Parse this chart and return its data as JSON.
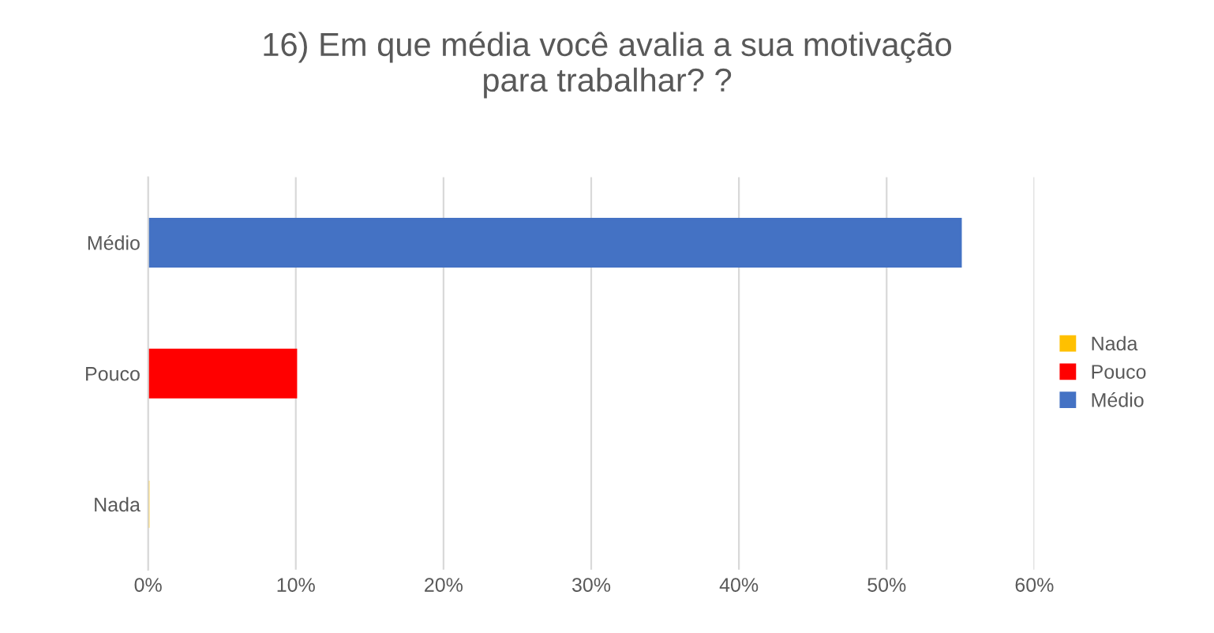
{
  "chart_data": {
    "type": "bar",
    "orientation": "horizontal",
    "title": "16) Em que média você avalia a sua motivação\npara trabalhar? ?",
    "categories": [
      "Médio",
      "Pouco",
      "Nada"
    ],
    "series": [
      {
        "name": "Nada",
        "color": "#ffc000",
        "values": [
          null,
          null,
          0
        ]
      },
      {
        "name": "Pouco",
        "color": "#ff0000",
        "values": [
          null,
          10,
          null
        ]
      },
      {
        "name": "Médio",
        "color": "#4472c4",
        "values": [
          55,
          null,
          null
        ]
      }
    ],
    "xlim": [
      0,
      60
    ],
    "xticks": [
      {
        "value": 0,
        "label": "0%"
      },
      {
        "value": 10,
        "label": "10%"
      },
      {
        "value": 20,
        "label": "20%"
      },
      {
        "value": 30,
        "label": "30%"
      },
      {
        "value": 40,
        "label": "40%"
      },
      {
        "value": 50,
        "label": "50%"
      },
      {
        "value": 60,
        "label": "60%"
      }
    ],
    "grid": "x",
    "legend": "right"
  }
}
